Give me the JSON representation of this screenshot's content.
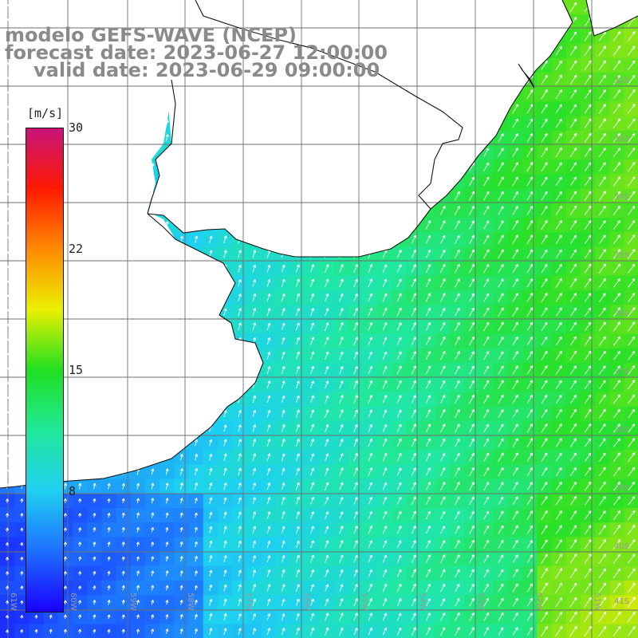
{
  "title": {
    "line1": "modelo GEFS-WAVE (NCEP)",
    "line2": "forecast date: 2023-06-27 12:00:00",
    "line3": "valid date: 2023-06-29 09:00:00"
  },
  "colorbar": {
    "unit": "[m/s]",
    "ticks": [
      "30",
      "22",
      "15",
      "8"
    ],
    "stops": [
      "#1a00ff",
      "#1e6fff",
      "#1fd0f0",
      "#20e89a",
      "#20e020",
      "#eaf000",
      "#ff8a00",
      "#ff1a00",
      "#c8147a"
    ]
  },
  "grid_labels": {
    "lat": [
      "32S",
      "33S",
      "34S",
      "35S",
      "36S",
      "37S",
      "38S",
      "39S",
      "40S",
      "41S"
    ],
    "lon": [
      "61W",
      "60W",
      "59W",
      "58W",
      "57W",
      "56W",
      "55W",
      "54W",
      "53W",
      "52W",
      "51W"
    ]
  },
  "colors": {
    "land": "#ffffff",
    "coast": "#111111",
    "grid": "#6e6e6e",
    "arrows": "#ffffff"
  }
}
